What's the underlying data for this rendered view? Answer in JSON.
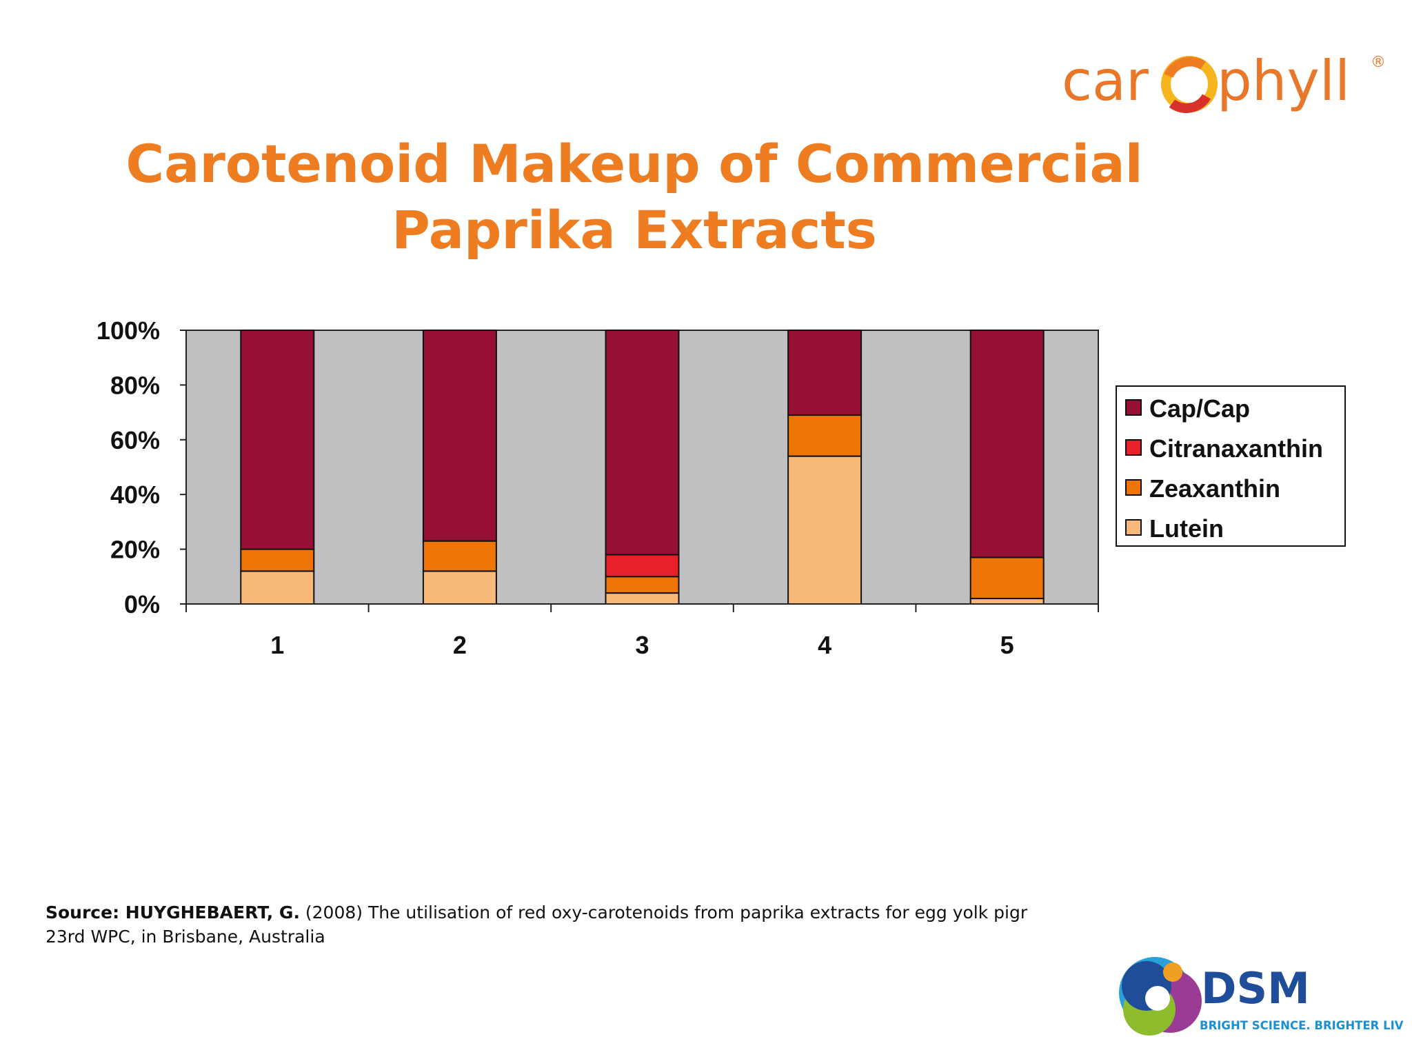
{
  "brand": {
    "carophyll_text_left": "car",
    "carophyll_text_right": "phyll",
    "registered_mark": "®",
    "dsm_text": "DSM",
    "dsm_tagline": "BRIGHT SCIENCE. BRIGHTER LIVING."
  },
  "title": {
    "line1": "Carotenoid  Makeup of Commercial",
    "line2": "Paprika Extracts"
  },
  "source": {
    "label": "Source: HUYGHEBAERT, G.",
    "text": " (2008) The utilisation of red oxy-carotenoids from paprika extracts for egg yolk pigr",
    "line2": "23rd WPC, in Brisbane, Australia"
  },
  "colors": {
    "title": "#ee7d22",
    "plot_bg": "#c0bfc1",
    "cap_cap": "#960f34",
    "citranaxanthin": "#e8202a",
    "zeaxanthin": "#ee7406",
    "lutein": "#f8b97b"
  },
  "chart_data": {
    "type": "bar",
    "stacked": true,
    "categories": [
      "1",
      "2",
      "3",
      "4",
      "5"
    ],
    "series": [
      {
        "name": "Lutein",
        "values": [
          12,
          12,
          4,
          54,
          2
        ]
      },
      {
        "name": "Zeaxanthin",
        "values": [
          8,
          11,
          6,
          15,
          15
        ]
      },
      {
        "name": "Citranaxanthin",
        "values": [
          0,
          0,
          8,
          0,
          0
        ]
      },
      {
        "name": "Cap/Cap",
        "values": [
          80,
          77,
          82,
          31,
          83
        ]
      }
    ],
    "legend_order": [
      "Cap/Cap",
      "Citranaxanthin",
      "Zeaxanthin",
      "Lutein"
    ],
    "y_ticks": [
      "0%",
      "20%",
      "40%",
      "60%",
      "80%",
      "100%"
    ],
    "ylim": [
      0,
      100
    ],
    "legend_position": "right",
    "grid": false
  }
}
